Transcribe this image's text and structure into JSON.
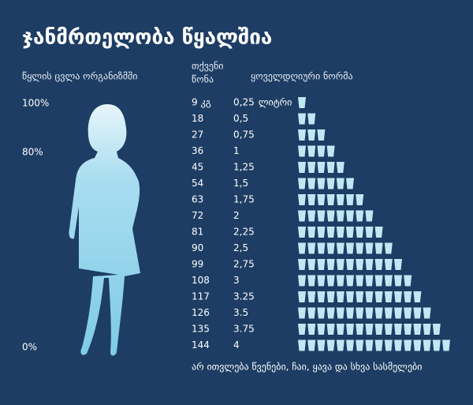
{
  "title": "ჯანმრთელობა წყალშია",
  "left_header": "წყლის ცვლა ორგანიზმში",
  "percent_labels": [
    "100%",
    "80%",
    "0%"
  ],
  "headers": {
    "weight": [
      "თქვენი",
      "წონა"
    ],
    "norm": "ყოველდღიური ნორმა"
  },
  "rows": [
    {
      "weight": "9",
      "unit": "კგ",
      "liters": "0,25",
      "liters_unit": "ლიტრი",
      "glasses": 1
    },
    {
      "weight": "18",
      "liters": "0,5",
      "glasses": 2
    },
    {
      "weight": "27",
      "liters": "0,75",
      "glasses": 3
    },
    {
      "weight": "36",
      "liters": "1",
      "glasses": 4
    },
    {
      "weight": "45",
      "liters": "1,25",
      "glasses": 5
    },
    {
      "weight": "54",
      "liters": "1,5",
      "glasses": 6
    },
    {
      "weight": "63",
      "liters": "1,75",
      "glasses": 7
    },
    {
      "weight": "72",
      "liters": "2",
      "glasses": 8
    },
    {
      "weight": "81",
      "liters": "2,25",
      "glasses": 9
    },
    {
      "weight": "90",
      "liters": "2,5",
      "glasses": 10
    },
    {
      "weight": "99",
      "liters": "2,75",
      "glasses": 11
    },
    {
      "weight": "108",
      "liters": "3",
      "glasses": 12
    },
    {
      "weight": "117",
      "liters": "3.25",
      "glasses": 13
    },
    {
      "weight": "126",
      "liters": "3.5",
      "glasses": 14
    },
    {
      "weight": "135",
      "liters": "3.75",
      "glasses": 15
    },
    {
      "weight": "144",
      "liters": "4",
      "glasses": 16
    }
  ],
  "footnote": "არ ითვლება წვენები, ჩაი, ყავა და სხვა სასმელები"
}
